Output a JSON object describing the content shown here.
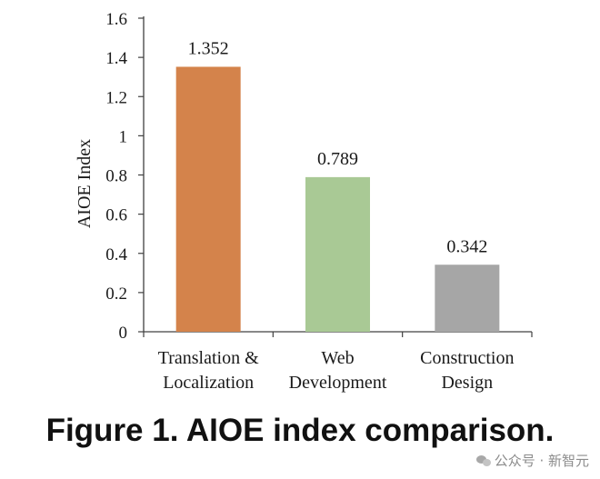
{
  "chart_data": {
    "type": "bar",
    "categories": [
      [
        "Translation &",
        "Localization"
      ],
      [
        "Web",
        "Development"
      ],
      [
        "Construction",
        "Design"
      ]
    ],
    "values": [
      1.352,
      0.789,
      0.342
    ],
    "data_labels": [
      "1.352",
      "0.789",
      "0.342"
    ],
    "bar_colors": [
      "#d4834b",
      "#a9c995",
      "#a6a6a6"
    ],
    "ylabel": "AIOE Index",
    "ylim": [
      0,
      1.6
    ],
    "yticks": [
      "0",
      "0.2",
      "0.4",
      "0.6",
      "0.8",
      "1",
      "1.2",
      "1.4",
      "1.6"
    ],
    "grid": false,
    "legend": "none"
  },
  "caption": "Figure 1. AIOE index comparison.",
  "watermark": {
    "text": "公众号 · 新智元",
    "icon": "wechat-icon"
  }
}
